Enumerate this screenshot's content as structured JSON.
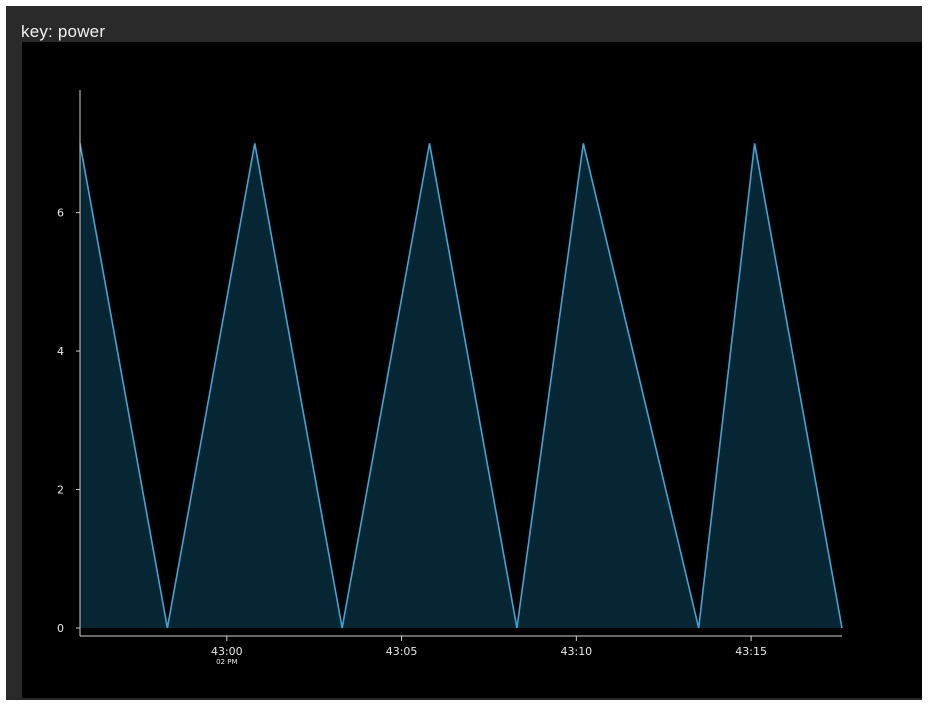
{
  "panel": {
    "title": "key: power"
  },
  "chart_data": {
    "type": "area",
    "title": "",
    "xlabel": "",
    "ylabel": "",
    "x_unit": "seconds",
    "y_ticks": [
      "0",
      "2",
      "4",
      "6"
    ],
    "x_ticks": [
      {
        "label": "43:00",
        "sublabel": "02 PM",
        "t": 0
      },
      {
        "label": "43:05",
        "sublabel": "",
        "t": 5
      },
      {
        "label": "43:10",
        "sublabel": "",
        "t": 10
      },
      {
        "label": "43:15",
        "sublabel": "",
        "t": 15
      }
    ],
    "ylim": [
      0,
      7.8
    ],
    "xlim": [
      -4.2,
      17.6
    ],
    "series": [
      {
        "x": [
          -4.2,
          -1.7,
          0.8,
          3.3,
          5.8,
          8.3,
          10.2,
          13.5,
          15.1,
          17.6
        ],
        "y": [
          7,
          0,
          7,
          0,
          7,
          0,
          7,
          0,
          7,
          0
        ]
      }
    ],
    "grid": false,
    "colors": {
      "line": "#3aa7d6",
      "fill": "#062634",
      "axis": "#cfcfcf",
      "plot_bg": "#000000",
      "frame": "#2a2a2a"
    }
  }
}
